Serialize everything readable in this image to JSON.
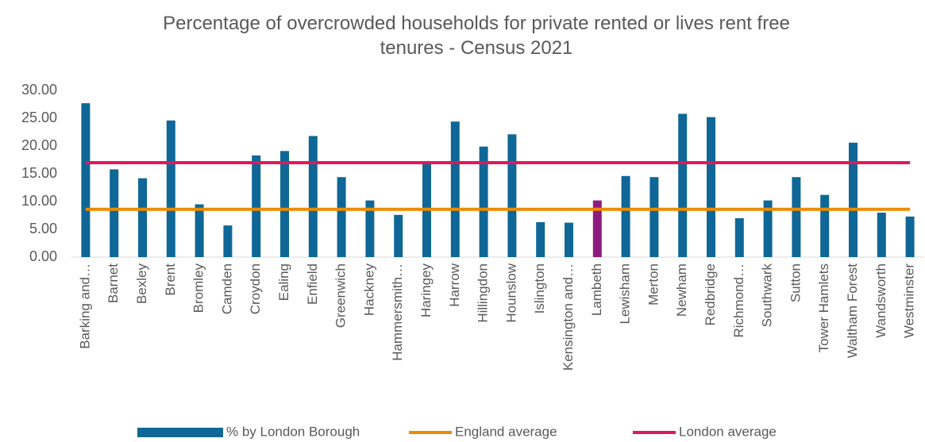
{
  "chart_data": {
    "type": "bar",
    "title": "Percentage of overcrowded households for private rented or lives rent free tenures - Census 2021",
    "categories": [
      "Barking and…",
      "Barnet",
      "Bexley",
      "Brent",
      "Bromley",
      "Camden",
      "Croydon",
      "Ealing",
      "Enfield",
      "Greenwich",
      "Hackney",
      "Hammersmith…",
      "Haringey",
      "Harrow",
      "Hillingdon",
      "Hounslow",
      "Islington",
      "Kensington and…",
      "Lambeth",
      "Lewisham",
      "Merton",
      "Newham",
      "Redbridge",
      "Richmond…",
      "Southwark",
      "Sutton",
      "Tower Hamlets",
      "Waltham Forest",
      "Wandsworth",
      "Westminster"
    ],
    "series": [
      {
        "name": "% by London Borough",
        "type": "bar",
        "color": "#0e6796",
        "colors": [
          "#0e6796",
          "#0e6796",
          "#0e6796",
          "#0e6796",
          "#0e6796",
          "#0e6796",
          "#0e6796",
          "#0e6796",
          "#0e6796",
          "#0e6796",
          "#0e6796",
          "#0e6796",
          "#0e6796",
          "#0e6796",
          "#0e6796",
          "#0e6796",
          "#0e6796",
          "#0e6796",
          "#8e1b7f",
          "#0e6796",
          "#0e6796",
          "#0e6796",
          "#0e6796",
          "#0e6796",
          "#0e6796",
          "#0e6796",
          "#0e6796",
          "#0e6796",
          "#0e6796",
          "#0e6796"
        ],
        "values": [
          27.7,
          15.8,
          14.2,
          24.6,
          9.5,
          5.7,
          18.3,
          19.1,
          21.8,
          14.4,
          10.2,
          7.6,
          16.8,
          24.4,
          19.9,
          22.1,
          6.3,
          6.2,
          10.2,
          14.6,
          14.4,
          25.8,
          25.2,
          7.0,
          10.2,
          14.4,
          11.2,
          20.6,
          8.0,
          7.3
        ]
      },
      {
        "name": "England average",
        "type": "line",
        "color": "#ed8b00",
        "values": [
          8.6,
          8.6,
          8.6,
          8.6,
          8.6,
          8.6,
          8.6,
          8.6,
          8.6,
          8.6,
          8.6,
          8.6,
          8.6,
          8.6,
          8.6,
          8.6,
          8.6,
          8.6,
          8.6,
          8.6,
          8.6,
          8.6,
          8.6,
          8.6,
          8.6,
          8.6,
          8.6,
          8.6,
          8.6,
          8.6
        ]
      },
      {
        "name": "London average",
        "type": "line",
        "color": "#e0195a",
        "values": [
          17.0,
          17.0,
          17.0,
          17.0,
          17.0,
          17.0,
          17.0,
          17.0,
          17.0,
          17.0,
          17.0,
          17.0,
          17.0,
          17.0,
          17.0,
          17.0,
          17.0,
          17.0,
          17.0,
          17.0,
          17.0,
          17.0,
          17.0,
          17.0,
          17.0,
          17.0,
          17.0,
          17.0,
          17.0,
          17.0
        ]
      }
    ],
    "ylim": [
      0,
      30
    ],
    "yticks": [
      {
        "value": 0,
        "label": "0.00"
      },
      {
        "value": 5,
        "label": "5.00"
      },
      {
        "value": 10,
        "label": "10.00"
      },
      {
        "value": 15,
        "label": "15.00"
      },
      {
        "value": 20,
        "label": "20.00"
      },
      {
        "value": 25,
        "label": "25.00"
      },
      {
        "value": 30,
        "label": "30.00"
      }
    ],
    "grid": false,
    "legend": "bottom"
  }
}
